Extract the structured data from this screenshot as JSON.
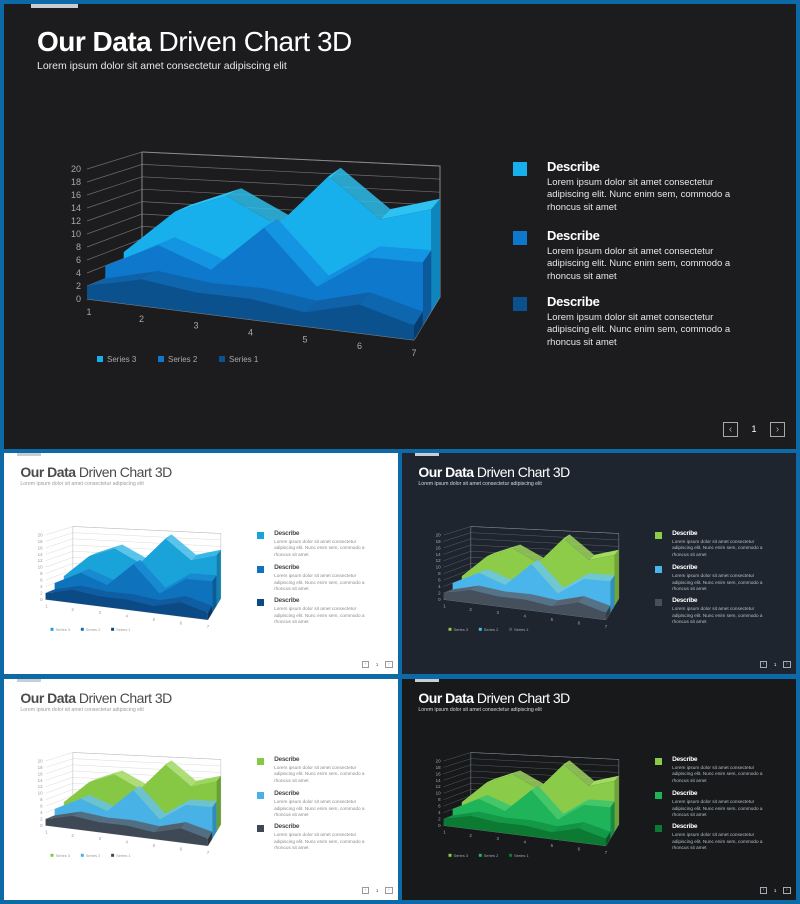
{
  "title_bold": "Our Data",
  "title_rest": " Driven Chart 3D",
  "subtitle": "Lorem ipsum dolor sit amet consectetur adipiscing elit",
  "description": {
    "heading": "Describe",
    "body": "Lorem ipsum dolor sit amet consectetur adipiscing elit. Nunc enim sem, commodo a rhoncus sit amet"
  },
  "chart_data": {
    "type": "area",
    "categories": [
      "1",
      "2",
      "3",
      "4",
      "5",
      "6",
      "7"
    ],
    "y_ticks": [
      "0",
      "2",
      "4",
      "6",
      "8",
      "10",
      "12",
      "14",
      "16",
      "18",
      "20"
    ],
    "ylim": [
      0,
      20
    ],
    "series": [
      {
        "name": "Series 3",
        "values": [
          5,
          12,
          15,
          11,
          19,
          13,
          15
        ]
      },
      {
        "name": "Series 2",
        "values": [
          4,
          8,
          5,
          12,
          4,
          9,
          9
        ]
      },
      {
        "name": "Series 1",
        "values": [
          2,
          4,
          3,
          3,
          2,
          4,
          2
        ]
      }
    ],
    "legend_order": [
      "Series 3",
      "Series 2",
      "Series 1"
    ],
    "legend_position": "bottom"
  },
  "pagination": {
    "prev_icon": "chevron-left-icon",
    "next_icon": "chevron-right-icon",
    "page": "1"
  },
  "themes": [
    {
      "name": "main",
      "bg": "#1c1c1e",
      "title": "#ffffff",
      "sub": "#e6e6e6",
      "text": "#e6e6e6",
      "muted": "#a8a8a8",
      "grid": "#8a8a8a",
      "colors": [
        "#18b0ec",
        "#0d78cc",
        "#0b518e"
      ],
      "top": [
        "#2ec2f2",
        "#138fe0",
        "#0f61a8"
      ],
      "side": [
        "#0e86bd",
        "#0a5a9d",
        "#073d6e"
      ]
    },
    {
      "name": "blue-light",
      "bg": "#ffffff",
      "title": "#4b4b4b",
      "sub": "#9a9a9a",
      "text": "#8a8a8a",
      "muted": "#9a9a9a",
      "grid": "#b7b7b7",
      "colors": [
        "#1aa3d8",
        "#0f72bd",
        "#0c4a85"
      ],
      "top": [
        "#37b7e6",
        "#1785d0",
        "#105a9d"
      ],
      "side": [
        "#127fae",
        "#0a5b97",
        "#08375f"
      ]
    },
    {
      "name": "slate-dark",
      "bg": "#1e252e",
      "title": "#ffffff",
      "sub": "#d7dbe0",
      "text": "#b9bfc6",
      "muted": "#a4aab1",
      "grid": "#8d949c",
      "colors": [
        "#8ccc48",
        "#4ab5ea",
        "#46505d"
      ],
      "top": [
        "#a2dc5f",
        "#68c6f1",
        "#586371"
      ],
      "side": [
        "#6fa636",
        "#2f8fc2",
        "#343c46"
      ]
    },
    {
      "name": "slate-light",
      "bg": "#ffffff",
      "title": "#4b4b4b",
      "sub": "#9a9a9a",
      "text": "#8a8a8a",
      "muted": "#9a9a9a",
      "grid": "#b7b7b7",
      "colors": [
        "#86c744",
        "#48b1e6",
        "#3f4955"
      ],
      "top": [
        "#9cd65b",
        "#66c2ee",
        "#545f6c"
      ],
      "side": [
        "#6a9f34",
        "#2f8cc0",
        "#2e353e"
      ]
    },
    {
      "name": "green-dark",
      "bg": "#17191b",
      "title": "#ffffff",
      "sub": "#d7dbe0",
      "text": "#b9bfc6",
      "muted": "#a4aab1",
      "grid": "#8d949c",
      "colors": [
        "#8bcb4a",
        "#1fb45a",
        "#0d7a33"
      ],
      "top": [
        "#a2da62",
        "#36c670",
        "#129244"
      ],
      "side": [
        "#6ea338",
        "#148c44",
        "#095824"
      ]
    }
  ]
}
